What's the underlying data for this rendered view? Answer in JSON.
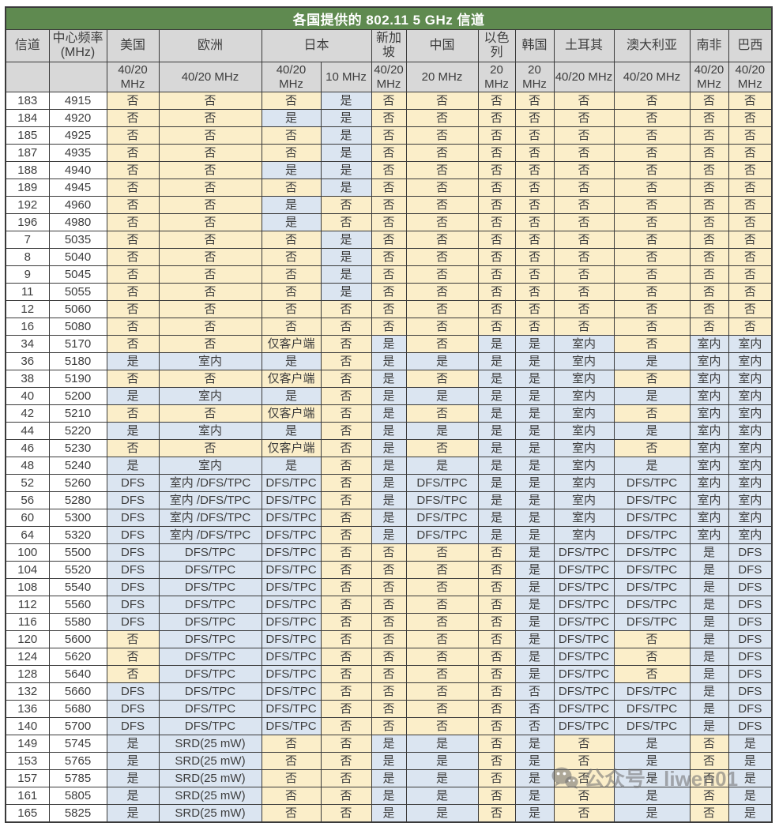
{
  "title": "各国提供的 802.11 5 GHz 信道",
  "watermark": {
    "text": "公众号 · liwen01",
    "icon": "wechat-icon"
  },
  "colors": {
    "title_bg": "#5f8a50",
    "title_text": "#ffffff",
    "header_bg": "#d8d8d8",
    "no_bg": "#fbeec9",
    "yes_bg": "#dbe5f1",
    "border": "#3a3a3a"
  },
  "table": {
    "channel_header": "信道",
    "freq_header": "中心频率 (MHz)",
    "countries": [
      {
        "name": "美国",
        "colspan": 1
      },
      {
        "name": "欧洲",
        "colspan": 1
      },
      {
        "name": "日本",
        "colspan": 2
      },
      {
        "name": "新加坡",
        "colspan": 1
      },
      {
        "name": "中国",
        "colspan": 1
      },
      {
        "name": "以色列",
        "colspan": 1
      },
      {
        "name": "韩国",
        "colspan": 1
      },
      {
        "name": "土耳其",
        "colspan": 1
      },
      {
        "name": "澳大利亚",
        "colspan": 1
      },
      {
        "name": "南非",
        "colspan": 1
      },
      {
        "name": "巴西",
        "colspan": 1
      }
    ],
    "band_row": [
      "",
      "",
      "40/20 MHz",
      "40/20 MHz",
      "40/20 MHz",
      "10 MHz",
      "40/20 MHz",
      "20 MHz",
      "20 MHz",
      "20 MHz",
      "40/20 MHz",
      "40/20 MHz",
      "40/20 MHz",
      "40/20 MHz"
    ],
    "rows": [
      {
        "ch": "183",
        "freq": "4915",
        "v": [
          "否",
          "否",
          "否",
          "是",
          "否",
          "否",
          "否",
          "否",
          "否",
          "否",
          "否",
          "否"
        ]
      },
      {
        "ch": "184",
        "freq": "4920",
        "v": [
          "否",
          "否",
          "是",
          "是",
          "否",
          "否",
          "否",
          "否",
          "否",
          "否",
          "否",
          "否"
        ]
      },
      {
        "ch": "185",
        "freq": "4925",
        "v": [
          "否",
          "否",
          "否",
          "是",
          "否",
          "否",
          "否",
          "否",
          "否",
          "否",
          "否",
          "否"
        ]
      },
      {
        "ch": "187",
        "freq": "4935",
        "v": [
          "否",
          "否",
          "否",
          "是",
          "否",
          "否",
          "否",
          "否",
          "否",
          "否",
          "否",
          "否"
        ]
      },
      {
        "ch": "188",
        "freq": "4940",
        "v": [
          "否",
          "否",
          "是",
          "是",
          "否",
          "否",
          "否",
          "否",
          "否",
          "否",
          "否",
          "否"
        ]
      },
      {
        "ch": "189",
        "freq": "4945",
        "v": [
          "否",
          "否",
          "否",
          "是",
          "否",
          "否",
          "否",
          "否",
          "否",
          "否",
          "否",
          "否"
        ]
      },
      {
        "ch": "192",
        "freq": "4960",
        "v": [
          "否",
          "否",
          "是",
          "否",
          "否",
          "否",
          "否",
          "否",
          "否",
          "否",
          "否",
          "否"
        ]
      },
      {
        "ch": "196",
        "freq": "4980",
        "v": [
          "否",
          "否",
          "是",
          "否",
          "否",
          "否",
          "否",
          "否",
          "否",
          "否",
          "否",
          "否"
        ]
      },
      {
        "ch": "7",
        "freq": "5035",
        "v": [
          "否",
          "否",
          "否",
          "是",
          "否",
          "否",
          "否",
          "否",
          "否",
          "否",
          "否",
          "否"
        ]
      },
      {
        "ch": "8",
        "freq": "5040",
        "v": [
          "否",
          "否",
          "否",
          "是",
          "否",
          "否",
          "否",
          "否",
          "否",
          "否",
          "否",
          "否"
        ]
      },
      {
        "ch": "9",
        "freq": "5045",
        "v": [
          "否",
          "否",
          "否",
          "是",
          "否",
          "否",
          "否",
          "否",
          "否",
          "否",
          "否",
          "否"
        ]
      },
      {
        "ch": "11",
        "freq": "5055",
        "v": [
          "否",
          "否",
          "否",
          "是",
          "否",
          "否",
          "否",
          "否",
          "否",
          "否",
          "否",
          "否"
        ]
      },
      {
        "ch": "12",
        "freq": "5060",
        "v": [
          "否",
          "否",
          "否",
          "否",
          "否",
          "否",
          "否",
          "否",
          "否",
          "否",
          "否",
          "否"
        ]
      },
      {
        "ch": "16",
        "freq": "5080",
        "v": [
          "否",
          "否",
          "否",
          "否",
          "否",
          "否",
          "否",
          "否",
          "否",
          "否",
          "否",
          "否"
        ]
      },
      {
        "ch": "34",
        "freq": "5170",
        "v": [
          "否",
          "否",
          "仅客户端",
          "否",
          "是",
          "否",
          "是",
          "是",
          "室内",
          "否",
          "室内",
          "室内"
        ]
      },
      {
        "ch": "36",
        "freq": "5180",
        "v": [
          "是",
          "室内",
          "是",
          "否",
          "是",
          "是",
          "是",
          "是",
          "室内",
          "是",
          "室内",
          "室内"
        ]
      },
      {
        "ch": "38",
        "freq": "5190",
        "v": [
          "否",
          "否",
          "仅客户端",
          "否",
          "是",
          "否",
          "是",
          "是",
          "室内",
          "否",
          "室内",
          "室内"
        ]
      },
      {
        "ch": "40",
        "freq": "5200",
        "v": [
          "是",
          "室内",
          "是",
          "否",
          "是",
          "是",
          "是",
          "是",
          "室内",
          "是",
          "室内",
          "室内"
        ]
      },
      {
        "ch": "42",
        "freq": "5210",
        "v": [
          "否",
          "否",
          "仅客户端",
          "否",
          "是",
          "否",
          "是",
          "是",
          "室内",
          "否",
          "室内",
          "室内"
        ]
      },
      {
        "ch": "44",
        "freq": "5220",
        "v": [
          "是",
          "室内",
          "是",
          "否",
          "是",
          "是",
          "是",
          "是",
          "室内",
          "是",
          "室内",
          "室内"
        ]
      },
      {
        "ch": "46",
        "freq": "5230",
        "v": [
          "否",
          "否",
          "仅客户端",
          "否",
          "是",
          "否",
          "是",
          "是",
          "室内",
          "否",
          "室内",
          "室内"
        ]
      },
      {
        "ch": "48",
        "freq": "5240",
        "v": [
          "是",
          "室内",
          "是",
          "否",
          "是",
          "是",
          "是",
          "是",
          "室内",
          "是",
          "室内",
          "室内"
        ]
      },
      {
        "ch": "52",
        "freq": "5260",
        "v": [
          "DFS",
          "室内 /DFS/TPC",
          "DFS/TPC",
          "否",
          "是",
          "DFS/TPC",
          "是",
          "是",
          "室内",
          "DFS/TPC",
          "室内",
          "室内"
        ]
      },
      {
        "ch": "56",
        "freq": "5280",
        "v": [
          "DFS",
          "室内 /DFS/TPC",
          "DFS/TPC",
          "否",
          "是",
          "DFS/TPC",
          "是",
          "是",
          "室内",
          "DFS/TPC",
          "室内",
          "室内"
        ]
      },
      {
        "ch": "60",
        "freq": "5300",
        "v": [
          "DFS",
          "室内 /DFS/TPC",
          "DFS/TPC",
          "否",
          "是",
          "DFS/TPC",
          "是",
          "是",
          "室内",
          "DFS/TPC",
          "室内",
          "室内"
        ]
      },
      {
        "ch": "64",
        "freq": "5320",
        "v": [
          "DFS",
          "室内 /DFS/TPC",
          "DFS/TPC",
          "否",
          "是",
          "DFS/TPC",
          "是",
          "是",
          "室内",
          "DFS/TPC",
          "室内",
          "室内"
        ]
      },
      {
        "ch": "100",
        "freq": "5500",
        "v": [
          "DFS",
          "DFS/TPC",
          "DFS/TPC",
          "否",
          "否",
          "否",
          "否",
          "是",
          "DFS/TPC",
          "DFS/TPC",
          "是",
          "DFS"
        ]
      },
      {
        "ch": "104",
        "freq": "5520",
        "v": [
          "DFS",
          "DFS/TPC",
          "DFS/TPC",
          "否",
          "否",
          "否",
          "否",
          "是",
          "DFS/TPC",
          "DFS/TPC",
          "是",
          "DFS"
        ]
      },
      {
        "ch": "108",
        "freq": "5540",
        "v": [
          "DFS",
          "DFS/TPC",
          "DFS/TPC",
          "否",
          "否",
          "否",
          "否",
          "是",
          "DFS/TPC",
          "DFS/TPC",
          "是",
          "DFS"
        ]
      },
      {
        "ch": "112",
        "freq": "5560",
        "v": [
          "DFS",
          "DFS/TPC",
          "DFS/TPC",
          "否",
          "否",
          "否",
          "否",
          "是",
          "DFS/TPC",
          "DFS/TPC",
          "是",
          "DFS"
        ]
      },
      {
        "ch": "116",
        "freq": "5580",
        "v": [
          "DFS",
          "DFS/TPC",
          "DFS/TPC",
          "否",
          "否",
          "否",
          "否",
          "是",
          "DFS/TPC",
          "DFS/TPC",
          "是",
          "DFS"
        ]
      },
      {
        "ch": "120",
        "freq": "5600",
        "v": [
          "否",
          "DFS/TPC",
          "DFS/TPC",
          "否",
          "否",
          "否",
          "否",
          "是",
          "DFS/TPC",
          "否",
          "是",
          "DFS"
        ]
      },
      {
        "ch": "124",
        "freq": "5620",
        "v": [
          "否",
          "DFS/TPC",
          "DFS/TPC",
          "否",
          "否",
          "否",
          "否",
          "是",
          "DFS/TPC",
          "否",
          "是",
          "DFS"
        ]
      },
      {
        "ch": "128",
        "freq": "5640",
        "v": [
          "否",
          "DFS/TPC",
          "DFS/TPC",
          "否",
          "否",
          "否",
          "否",
          "是",
          "DFS/TPC",
          "否",
          "是",
          "DFS"
        ]
      },
      {
        "ch": "132",
        "freq": "5660",
        "v": [
          "DFS",
          "DFS/TPC",
          "DFS/TPC",
          "否",
          "否",
          "否",
          "否",
          "否",
          "DFS/TPC",
          "DFS/TPC",
          "是",
          "DFS"
        ]
      },
      {
        "ch": "136",
        "freq": "5680",
        "v": [
          "DFS",
          "DFS/TPC",
          "DFS/TPC",
          "否",
          "否",
          "否",
          "否",
          "否",
          "DFS/TPC",
          "DFS/TPC",
          "是",
          "DFS"
        ]
      },
      {
        "ch": "140",
        "freq": "5700",
        "v": [
          "DFS",
          "DFS/TPC",
          "DFS/TPC",
          "否",
          "否",
          "否",
          "否",
          "否",
          "DFS/TPC",
          "DFS/TPC",
          "是",
          "DFS"
        ]
      },
      {
        "ch": "149",
        "freq": "5745",
        "v": [
          "是",
          "SRD(25 mW)",
          "否",
          "否",
          "是",
          "是",
          "否",
          "是",
          "否",
          "是",
          "否",
          "是"
        ]
      },
      {
        "ch": "153",
        "freq": "5765",
        "v": [
          "是",
          "SRD(25 mW)",
          "否",
          "否",
          "是",
          "是",
          "否",
          "是",
          "否",
          "是",
          "否",
          "是"
        ]
      },
      {
        "ch": "157",
        "freq": "5785",
        "v": [
          "是",
          "SRD(25 mW)",
          "否",
          "否",
          "是",
          "是",
          "否",
          "是",
          "否",
          "是",
          "否",
          "是"
        ]
      },
      {
        "ch": "161",
        "freq": "5805",
        "v": [
          "是",
          "SRD(25 mW)",
          "否",
          "否",
          "是",
          "是",
          "否",
          "是",
          "否",
          "是",
          "否",
          "是"
        ]
      },
      {
        "ch": "165",
        "freq": "5825",
        "v": [
          "是",
          "SRD(25 mW)",
          "否",
          "否",
          "是",
          "是",
          "否",
          "是",
          "否",
          "是",
          "否",
          "是"
        ]
      }
    ],
    "blue_overrides": [
      "34-7",
      "35-7",
      "36-7"
    ]
  }
}
